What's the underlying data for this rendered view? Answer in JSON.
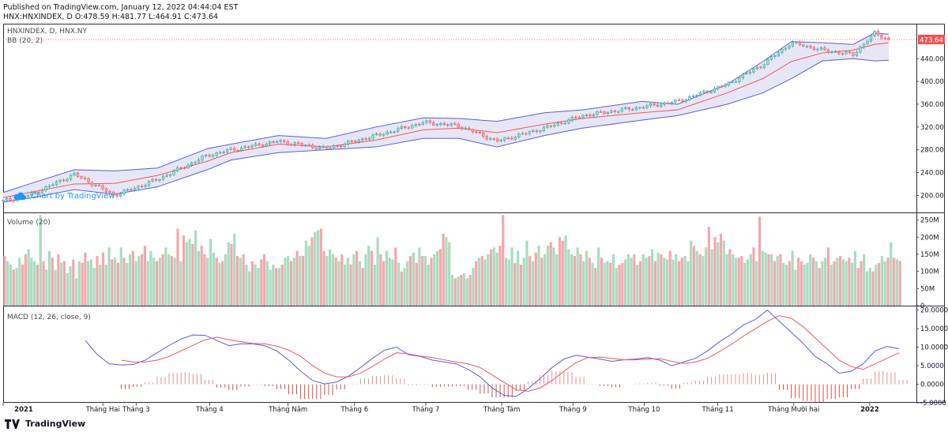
{
  "header": {
    "published_line": "Published on TradingView.com, January 12, 2022 04:44:04 EST",
    "quote_line": "HNX:HNXINDEX, D O:478.59 H:481.77 L:464.91 C:473.64"
  },
  "price_panel": {
    "symbol_line": "HNXINDEX, D, HNX.NY",
    "indicator_line": "BB (20, 2)",
    "watermark": "Chart by TradingView",
    "last_price_label": "473.64"
  },
  "volume_panel": {
    "label": "Volume (20)"
  },
  "macd_panel": {
    "label": "MACD (12, 26, close, 9)"
  },
  "footer": {
    "brand": "TradingView"
  },
  "colors": {
    "up": "#26a69a",
    "up_fill": "#a8dcc0",
    "down": "#ef5350",
    "down_fill": "#f5a6ae",
    "bb_band": "#5b5fd6",
    "bb_fill": "#e7e6f7",
    "bb_basis": "#f0575b",
    "macd": "#5b5fd6",
    "signal": "#f0575b",
    "last_price": "#ef5350"
  },
  "chart_data": [
    {
      "type": "line",
      "title": "HNXINDEX, D, HNX.NY",
      "series": [
        {
          "name": "BB (20, 2)",
          "role": "price",
          "x": [
            "2021-01-04",
            "2021-01-15",
            "2021-02-03",
            "2021-02-20",
            "2021-03-10",
            "2021-03-31",
            "2021-04-10",
            "2021-04-30",
            "2021-05-20",
            "2021-06-10",
            "2021-06-30",
            "2021-07-15",
            "2021-07-31",
            "2021-08-20",
            "2021-09-05",
            "2021-09-30",
            "2021-10-15",
            "2021-11-05",
            "2021-11-20",
            "2021-12-02",
            "2021-12-15",
            "2021-12-28",
            "2022-01-06",
            "2022-01-12"
          ],
          "values": [
            190,
            200,
            237,
            200,
            228,
            270,
            280,
            295,
            282,
            305,
            328,
            322,
            295,
            318,
            340,
            355,
            365,
            395,
            430,
            468,
            455,
            447,
            485,
            473.64
          ]
        },
        {
          "name": "BB upper",
          "values": [
            205,
            220,
            245,
            243,
            248,
            282,
            290,
            305,
            300,
            320,
            336,
            335,
            330,
            345,
            350,
            365,
            360,
            395,
            435,
            470,
            468,
            465,
            485,
            483
          ]
        },
        {
          "name": "BB basis",
          "values": [
            196,
            205,
            220,
            221,
            235,
            260,
            275,
            290,
            285,
            297,
            315,
            318,
            310,
            325,
            335,
            345,
            350,
            380,
            405,
            435,
            450,
            455,
            465,
            468
          ]
        },
        {
          "name": "BB lower",
          "values": [
            188,
            195,
            210,
            202,
            215,
            245,
            262,
            275,
            280,
            285,
            300,
            300,
            285,
            305,
            318,
            332,
            340,
            360,
            380,
            405,
            436,
            440,
            436,
            437
          ]
        }
      ],
      "ylim": [
        170,
        500
      ],
      "yticks": [
        "200.00",
        "240.00",
        "280.00",
        "320.00",
        "360.00",
        "400.00",
        "440.00"
      ],
      "xticks": [
        "2021",
        "Tháng Hai",
        "Tháng 3",
        "Tháng 4",
        "Tháng Năm",
        "Tháng 6",
        "Tháng 7",
        "Tháng Tám",
        "Tháng 9",
        "Tháng 10",
        "Tháng 11",
        "Tháng Mười hai",
        "2022"
      ]
    },
    {
      "type": "bar",
      "title": "Volume (20)",
      "ylim": [
        0,
        270
      ],
      "yticks": [
        "0",
        "50M",
        "100M",
        "150M",
        "200M",
        "250M"
      ],
      "up_pattern": [
        0,
        1,
        1,
        0,
        1,
        1,
        0,
        0,
        1,
        1,
        1,
        0,
        1,
        0,
        1,
        1,
        0,
        1,
        0,
        1
      ],
      "values": [
        145,
        130,
        120,
        105,
        110,
        140,
        120,
        150,
        165,
        140,
        130,
        120,
        265,
        130,
        105,
        160,
        140,
        105,
        150,
        125,
        130,
        95,
        115,
        135,
        80,
        130,
        125,
        155,
        130,
        135,
        110,
        145,
        120,
        155,
        120,
        170,
        135,
        140,
        125,
        170,
        140,
        125,
        150,
        160,
        130,
        145,
        150,
        175,
        130,
        160,
        140,
        130,
        140,
        150,
        170,
        150,
        145,
        140,
        225,
        130,
        205,
        185,
        195,
        180,
        220,
        160,
        175,
        150,
        140,
        195,
        155,
        140,
        125,
        130,
        150,
        185,
        180,
        210,
        145,
        140,
        150,
        120,
        100,
        130,
        120,
        110,
        135,
        150,
        130,
        105,
        120,
        110,
        110,
        120,
        140,
        145,
        130,
        140,
        160,
        145,
        145,
        190,
        175,
        200,
        215,
        220,
        225,
        160,
        145,
        165,
        150,
        140,
        130,
        150,
        120,
        140,
        120,
        150,
        160,
        130,
        110,
        150,
        175,
        160,
        120,
        200,
        150,
        130,
        160,
        140,
        135,
        170,
        125,
        100,
        110,
        130,
        145,
        155,
        125,
        170,
        145,
        145,
        120,
        140,
        150,
        160,
        165,
        210,
        200,
        185,
        90,
        80,
        85,
        90,
        95,
        80,
        90,
        110,
        130,
        140,
        145,
        135,
        150,
        165,
        170,
        155,
        175,
        265,
        140,
        135,
        170,
        125,
        160,
        120,
        140,
        190,
        145,
        130,
        155,
        175,
        140,
        150,
        175,
        185,
        170,
        150,
        200,
        190,
        205,
        165,
        150,
        145,
        170,
        150,
        130,
        160,
        140,
        125,
        110,
        170,
        140,
        125,
        130,
        125,
        150,
        110,
        120,
        125,
        135,
        150,
        140,
        150,
        120,
        130,
        150,
        140,
        145,
        165,
        130,
        155,
        150,
        140,
        135,
        160,
        135,
        150,
        130,
        140,
        145,
        130,
        190,
        175,
        160,
        150,
        145,
        170,
        230,
        165,
        200,
        185,
        210,
        190,
        150,
        165,
        150,
        140,
        140,
        145,
        125,
        135,
        150,
        170,
        130,
        260,
        160,
        155,
        150,
        150,
        130,
        145,
        150,
        125,
        120,
        130,
        160,
        105,
        140,
        130,
        120,
        125,
        150,
        140,
        130,
        110,
        130,
        140,
        170,
        120,
        130,
        140,
        145,
        135,
        130,
        140,
        125,
        160,
        110,
        130,
        150,
        100,
        110,
        100,
        120,
        125,
        145,
        130,
        140,
        185,
        140,
        135,
        130
      ]
    },
    {
      "type": "line",
      "title": "MACD (12, 26, close, 9)",
      "ylim": [
        -5,
        21
      ],
      "yticks": [
        "-5.0000",
        "0.0000",
        "5.0000",
        "10.0000",
        "15.0000",
        "20.0000"
      ],
      "series": [
        {
          "name": "MACD",
          "values": [
            11.8,
            8.0,
            5.5,
            5.2,
            5.3,
            6.5,
            8.5,
            10.5,
            12.2,
            13.3,
            13.2,
            11.8,
            10.4,
            10.9,
            10.9,
            10.4,
            9.0,
            6.5,
            3.5,
            1.0,
            0.1,
            0.6,
            2.2,
            4.5,
            7.0,
            9.2,
            10.0,
            8.0,
            7.5,
            6.5,
            6.0,
            5.5,
            4.0,
            2.0,
            -1.0,
            -3.0,
            -3.3,
            -1.2,
            1.5,
            4.5,
            6.8,
            7.8,
            7.3,
            6.8,
            6.2,
            6.6,
            6.8,
            7.2,
            6.5,
            5.0,
            6.0,
            7.0,
            9.0,
            11.5,
            13.5,
            16.0,
            17.5,
            20.0,
            17.0,
            14.0,
            11.0,
            7.5,
            5.5,
            3.0,
            3.5,
            5.5,
            9.0,
            10.2,
            9.6
          ]
        },
        {
          "name": "Signal",
          "values": [
            null,
            null,
            null,
            6.5,
            6.0,
            6.0,
            6.5,
            7.5,
            9.0,
            10.5,
            12.0,
            12.7,
            12.0,
            11.5,
            11.0,
            10.9,
            10.3,
            9.2,
            7.5,
            5.0,
            3.0,
            2.0,
            2.0,
            3.0,
            4.8,
            6.8,
            8.5,
            8.2,
            7.6,
            7.2,
            6.6,
            6.0,
            5.5,
            4.5,
            2.5,
            0.5,
            -1.5,
            -1.9,
            -1.0,
            1.0,
            3.5,
            5.8,
            7.2,
            7.3,
            7.0,
            6.6,
            6.6,
            6.8,
            6.9,
            6.2,
            5.6,
            6.0,
            7.0,
            8.8,
            10.8,
            13.0,
            15.0,
            17.0,
            18.5,
            17.8,
            15.5,
            12.5,
            9.5,
            6.5,
            4.8,
            4.0,
            5.5,
            7.0,
            8.5
          ]
        }
      ]
    }
  ]
}
